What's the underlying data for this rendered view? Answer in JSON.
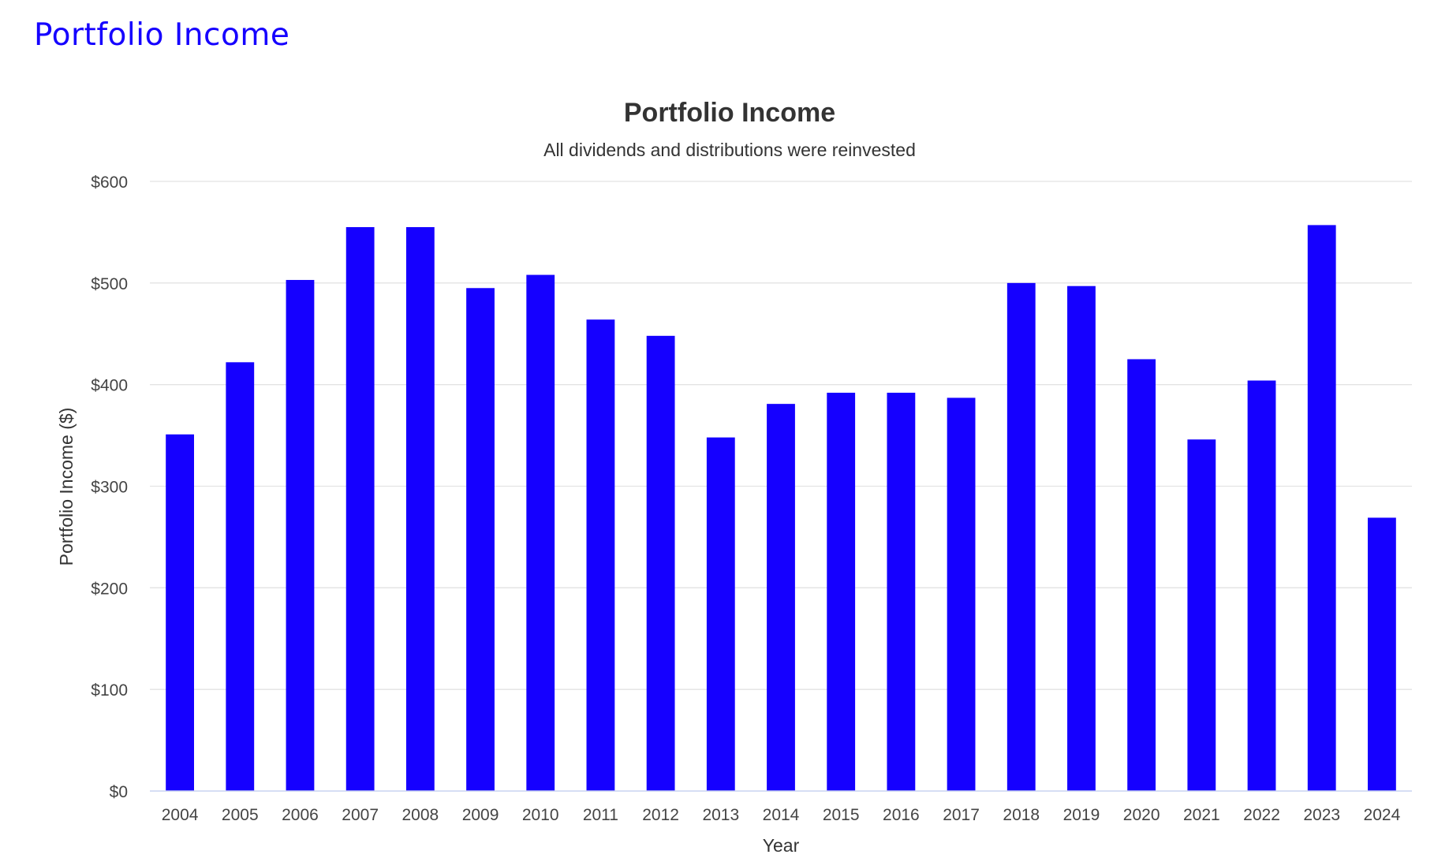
{
  "page": {
    "heading": "Portfolio Income"
  },
  "colors": {
    "heading": "#1500ff",
    "bar": "#1500ff",
    "grid": "#e3e3e3",
    "axis_line": "#c8d3f0",
    "text": "#333333"
  },
  "chart_data": {
    "type": "bar",
    "title": "Portfolio Income",
    "subtitle": "All dividends and distributions were reinvested",
    "xlabel": "Year",
    "ylabel": "Portfolio Income ($)",
    "ylim": [
      0,
      600
    ],
    "yticks": [
      0,
      100,
      200,
      300,
      400,
      500,
      600
    ],
    "ytick_labels": [
      "$0",
      "$100",
      "$200",
      "$300",
      "$400",
      "$500",
      "$600"
    ],
    "grid": true,
    "legend": "none",
    "categories": [
      "2004",
      "2005",
      "2006",
      "2007",
      "2008",
      "2009",
      "2010",
      "2011",
      "2012",
      "2013",
      "2014",
      "2015",
      "2016",
      "2017",
      "2018",
      "2019",
      "2020",
      "2021",
      "2022",
      "2023",
      "2024"
    ],
    "series": [
      {
        "values": [
          351,
          422,
          503,
          555,
          555,
          495,
          508,
          464,
          448,
          348,
          381,
          392,
          392,
          387,
          500,
          497,
          425,
          346,
          404,
          557,
          269
        ]
      }
    ]
  }
}
